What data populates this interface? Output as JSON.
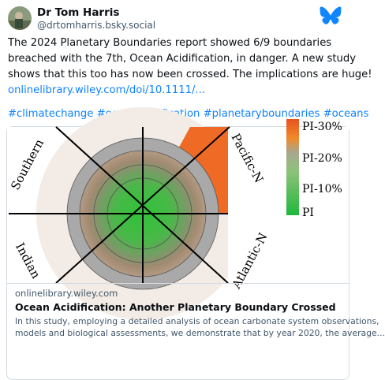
{
  "post": {
    "author": {
      "name": "Dr Tom Harris",
      "handle": "@drtomharris.bsky.social"
    },
    "text_lines": [
      "The 2024 Planetary Boundaries report showed 6/9 boundaries",
      "breached with the 7th, Ocean Acidification, in danger. A new study",
      "shows that this too has now been crossed. The implications are huge!"
    ],
    "link": "onlinelibrary.wiley.com/doi/10.1111/...",
    "hashtags": "#climatechange #oceanacidification #planetaryboundaries #oceans",
    "card": {
      "image": {
        "sector_labels": [
          "Southern",
          "Pacific-N",
          "Indian",
          "Atlantic-N"
        ],
        "scale_labels": [
          "PI-30%",
          "PI-20%",
          "PI-10%",
          "PI"
        ]
      },
      "domain": "onlinelibrary.wiley.com",
      "title": "Ocean Acidification: Another Planetary Boundary Crossed",
      "description_lines": [
        "In this study, employing a detailed analysis of ocean carbonate system observations,",
        "models and biological assessments, we demonstrate that by year 2020, the average..."
      ]
    }
  }
}
